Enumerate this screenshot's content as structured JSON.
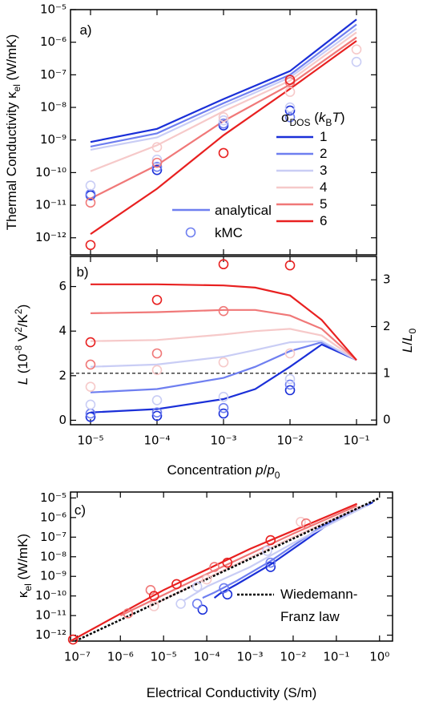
{
  "chart_data": [
    {
      "type": "line",
      "panel_label": "a)",
      "xlog": true,
      "ylog": true,
      "xlim": [
        5e-06,
        0.2
      ],
      "ylim": [
        3e-13,
        1e-05
      ],
      "xticks": [
        1e-05,
        0.0001,
        0.001,
        0.01,
        0.1
      ],
      "xtick_labels": false,
      "yticks": [
        {
          "value": 1e-05,
          "label": "10⁻⁵"
        },
        {
          "value": 1e-06,
          "label": "10⁻⁶"
        },
        {
          "value": 1e-07,
          "label": "10⁻⁷"
        },
        {
          "value": 1e-08,
          "label": "10⁻⁸"
        },
        {
          "value": 1e-09,
          "label": "10⁻⁹"
        },
        {
          "value": 1e-10,
          "label": "10⁻¹⁰"
        },
        {
          "value": 1e-11,
          "label": "10⁻¹¹"
        },
        {
          "value": 1e-12,
          "label": "10⁻¹²"
        }
      ],
      "ylabel": [
        {
          "text": "Thermal Conductivity κ"
        },
        {
          "text": "el",
          "sub": true
        },
        {
          "text": " (W/mK)"
        }
      ],
      "legend": {
        "corner": "lower right",
        "title": [
          {
            "text": "σ"
          },
          {
            "text": "DOS",
            "sub": true
          },
          {
            "text": " ("
          },
          {
            "text": "k",
            "italic": true
          },
          {
            "text": "B",
            "sub": true
          },
          {
            "text": "T",
            "italic": true
          },
          {
            "text": ")"
          }
        ]
      },
      "style_legend": [
        {
          "label": "analytical",
          "kind": "line",
          "color": "#6f7ff0"
        },
        {
          "label": "kMC",
          "kind": "marker",
          "color": "#6f7ff0"
        }
      ],
      "series": [
        {
          "name": "1",
          "color": "#1a2fd8",
          "x": [
            1e-05,
            0.0001,
            0.001,
            0.01,
            0.1
          ],
          "values": [
            8.7e-10,
            2.2e-09,
            1.8e-08,
            1.3e-07,
            5e-06
          ]
        },
        {
          "name": "2",
          "color": "#6f7ff0",
          "x": [
            1e-05,
            0.0001,
            0.001,
            0.01,
            0.1
          ],
          "values": [
            6.3e-10,
            1.6e-09,
            1.35e-08,
            1e-07,
            3.5e-06
          ]
        },
        {
          "name": "3",
          "color": "#c9cdf5",
          "x": [
            1e-05,
            0.0001,
            0.001,
            0.01,
            0.1
          ],
          "values": [
            5e-10,
            1.2e-09,
            1.07e-08,
            8.3e-08,
            2.6e-06
          ]
        },
        {
          "name": "4",
          "color": "#f6c9c9",
          "x": [
            1e-05,
            0.0001,
            0.001,
            0.01,
            0.1
          ],
          "values": [
            1.1e-10,
            6.9e-10,
            7.6e-09,
            6.6e-08,
            2e-06
          ]
        },
        {
          "name": "5",
          "color": "#f07878",
          "x": [
            1e-05,
            0.0001,
            0.001,
            0.01,
            0.1
          ],
          "values": [
            1.6e-11,
            1.7e-10,
            3.8e-09,
            5e-08,
            1.4e-06
          ]
        },
        {
          "name": "6",
          "color": "#e82020",
          "x": [
            1e-05,
            0.0001,
            0.001,
            0.01,
            0.1
          ],
          "values": [
            1.3e-12,
            3.2e-11,
            1.4e-09,
            3.7e-08,
            1.1e-06
          ]
        }
      ],
      "markers": [
        {
          "color": "#1a2fd8",
          "x": [
            1e-05,
            0.0001,
            0.001,
            0.01,
            0.1
          ],
          "values": [
            2e-11,
            1.2e-10,
            2.8e-09,
            8e-09,
            null
          ]
        },
        {
          "color": "#6f7ff0",
          "x": [
            1e-05,
            0.0001,
            0.001,
            0.01,
            0.1
          ],
          "values": [
            2.2e-11,
            1.5e-10,
            3.2e-09,
            5e-09,
            null
          ]
        },
        {
          "color": "#c9cdf5",
          "x": [
            1e-05,
            0.0001,
            0.001,
            0.01,
            0.1
          ],
          "values": [
            4e-11,
            2.5e-10,
            4e-09,
            1e-08,
            2.5e-07
          ]
        },
        {
          "color": "#f6c9c9",
          "x": [
            1e-05,
            0.0001,
            0.001,
            0.01,
            0.1
          ],
          "values": [
            null,
            6e-10,
            5e-09,
            3e-08,
            6e-07
          ]
        },
        {
          "color": "#f07878",
          "x": [
            1e-05,
            0.0001,
            0.001,
            0.01,
            0.1
          ],
          "values": [
            1.2e-11,
            2e-10,
            null,
            6e-08,
            null
          ]
        },
        {
          "color": "#e82020",
          "x": [
            1e-05,
            0.0001,
            0.001,
            0.01,
            0.1
          ],
          "values": [
            6e-13,
            null,
            4e-10,
            7e-08,
            null
          ]
        }
      ]
    },
    {
      "type": "line",
      "panel_label": "b)",
      "xlog": true,
      "ylog": false,
      "xlim": [
        5e-06,
        0.2
      ],
      "ylim": [
        -0.2,
        7.35
      ],
      "y2lim": [
        -0.1,
        3.5
      ],
      "xticks": [
        {
          "value": 1e-05,
          "label": "10⁻⁵"
        },
        {
          "value": 0.0001,
          "label": "10⁻⁴"
        },
        {
          "value": 0.001,
          "label": "10⁻³"
        },
        {
          "value": 0.01,
          "label": "10⁻²"
        },
        {
          "value": 0.1,
          "label": "10⁻¹"
        }
      ],
      "yticks": [
        0,
        2,
        4,
        6
      ],
      "y2ticks": [
        0,
        1,
        2,
        3
      ],
      "xlabel": [
        {
          "text": "Concentration "
        },
        {
          "text": "p",
          "italic": true
        },
        {
          "text": "/"
        },
        {
          "text": "p",
          "italic": true
        },
        {
          "text": "0",
          "sub": true
        }
      ],
      "ylabel": [
        {
          "text": "L",
          "italic": true
        },
        {
          "text": " (10"
        },
        {
          "text": "-8",
          "sup": true
        },
        {
          "text": " V"
        },
        {
          "text": "2",
          "sup": true
        },
        {
          "text": "/K"
        },
        {
          "text": "2",
          "sup": true
        },
        {
          "text": ")"
        }
      ],
      "y2label": [
        {
          "text": "L",
          "italic": true
        },
        {
          "text": "/"
        },
        {
          "text": "L",
          "italic": true
        },
        {
          "text": "0",
          "sub": true
        }
      ],
      "reference_line": {
        "value": 1,
        "axis": "y2"
      },
      "series": [
        {
          "color": "#1a2fd8",
          "x": [
            1e-05,
            0.0001,
            0.001,
            0.003,
            0.01,
            0.03,
            0.1
          ],
          "values": [
            0.35,
            0.5,
            0.95,
            1.4,
            2.4,
            3.4,
            2.7
          ]
        },
        {
          "color": "#6f7ff0",
          "x": [
            1e-05,
            0.0001,
            0.001,
            0.003,
            0.01,
            0.03,
            0.1
          ],
          "values": [
            1.25,
            1.4,
            1.9,
            2.4,
            3.1,
            3.5,
            2.7
          ]
        },
        {
          "color": "#c9cdf5",
          "x": [
            1e-05,
            0.0001,
            0.001,
            0.003,
            0.01,
            0.03,
            0.1
          ],
          "values": [
            2.4,
            2.5,
            2.85,
            3.15,
            3.5,
            3.55,
            2.7
          ]
        },
        {
          "color": "#f6c9c9",
          "x": [
            1e-05,
            0.0001,
            0.001,
            0.003,
            0.01,
            0.03,
            0.1
          ],
          "values": [
            3.55,
            3.6,
            3.85,
            4.0,
            4.1,
            3.8,
            2.7
          ]
        },
        {
          "color": "#f07878",
          "x": [
            1e-05,
            0.0001,
            0.001,
            0.003,
            0.01,
            0.03,
            0.1
          ],
          "values": [
            4.8,
            4.85,
            4.95,
            4.95,
            4.7,
            4.1,
            2.7
          ]
        },
        {
          "color": "#e82020",
          "x": [
            1e-05,
            0.0001,
            0.001,
            0.003,
            0.01,
            0.03,
            0.1
          ],
          "values": [
            6.1,
            6.1,
            6.05,
            5.95,
            5.6,
            4.5,
            2.7
          ]
        }
      ],
      "markers": [
        {
          "color": "#1a2fd8",
          "x": [
            1e-05,
            0.0001,
            0.001,
            0.01
          ],
          "values": [
            0.15,
            0.2,
            0.3,
            1.35
          ]
        },
        {
          "color": "#6f7ff0",
          "x": [
            1e-05,
            0.0001,
            0.001,
            0.01
          ],
          "values": [
            0.3,
            0.35,
            0.55,
            1.6
          ]
        },
        {
          "color": "#c9cdf5",
          "x": [
            1e-05,
            0.0001,
            0.001,
            0.01
          ],
          "values": [
            0.7,
            0.9,
            1.05,
            1.85
          ]
        },
        {
          "color": "#f6c9c9",
          "x": [
            1e-05,
            0.0001,
            0.001,
            0.01
          ],
          "values": [
            1.5,
            2.25,
            2.6,
            3.0
          ]
        },
        {
          "color": "#f07878",
          "x": [
            1e-05,
            0.0001,
            0.001,
            0.01
          ],
          "values": [
            2.5,
            3.0,
            4.9,
            null
          ]
        },
        {
          "color": "#e82020",
          "x": [
            1e-05,
            0.0001,
            0.001,
            0.01
          ],
          "values": [
            3.5,
            5.4,
            7.0,
            6.95
          ]
        }
      ]
    },
    {
      "type": "line",
      "panel_label": "c)",
      "xlog": true,
      "ylog": true,
      "xlim": [
        7e-08,
        2
      ],
      "ylim": [
        5e-13,
        2e-05
      ],
      "xticks": [
        {
          "value": 1e-07,
          "label": "10⁻⁷"
        },
        {
          "value": 1e-06,
          "label": "10⁻⁶"
        },
        {
          "value": 1e-05,
          "label": "10⁻⁵"
        },
        {
          "value": 0.0001,
          "label": "10⁻⁴"
        },
        {
          "value": 0.001,
          "label": "10⁻³"
        },
        {
          "value": 0.01,
          "label": "10⁻²"
        },
        {
          "value": 0.1,
          "label": "10⁻¹"
        },
        {
          "value": 1,
          "label": "10⁰"
        }
      ],
      "yticks": [
        {
          "value": 1e-05,
          "label": "10⁻⁵"
        },
        {
          "value": 1e-06,
          "label": "10⁻⁶"
        },
        {
          "value": 1e-07,
          "label": "10⁻⁷"
        },
        {
          "value": 1e-08,
          "label": "10⁻⁸"
        },
        {
          "value": 1e-09,
          "label": "10⁻⁹"
        },
        {
          "value": 1e-10,
          "label": "10⁻¹⁰"
        },
        {
          "value": 1e-11,
          "label": "10⁻¹¹"
        },
        {
          "value": 1e-12,
          "label": "10⁻¹²"
        }
      ],
      "xlabel": [
        {
          "text": "Electrical Conductivity (S/m)"
        }
      ],
      "ylabel": [
        {
          "text": "κ"
        },
        {
          "text": "el",
          "sub": true
        },
        {
          "text": " (W/mK)"
        }
      ],
      "legend": {
        "corner": "lower right"
      },
      "series": [
        {
          "color": "#1a2fd8",
          "x": [
            0.00015,
            0.0002,
            0.0005,
            0.003,
            0.06,
            0.7
          ],
          "values": [
            8e-11,
            1.3e-10,
            4e-10,
            4e-09,
            4e-07,
            6e-06
          ]
        },
        {
          "color": "#6f7ff0",
          "x": [
            8e-05,
            0.00015,
            0.0005,
            0.003,
            0.05,
            0.6
          ],
          "values": [
            8e-11,
            1.5e-10,
            6e-10,
            6e-09,
            4e-07,
            5e-06
          ]
        },
        {
          "color": "#c9cdf5",
          "x": [
            3e-05,
            0.0001,
            0.001,
            0.01,
            0.5
          ],
          "values": [
            6e-11,
            3e-10,
            3e-09,
            5e-08,
            4e-06
          ]
        },
        {
          "color": "#f6c9c9",
          "x": [
            5e-06,
            0.0001,
            0.01,
            0.4
          ],
          "values": [
            3e-11,
            8e-10,
            1e-07,
            4e-06
          ]
        },
        {
          "color": "#f07878",
          "x": [
            1e-06,
            0.0001,
            0.01,
            0.3
          ],
          "values": [
            1e-11,
            1.3e-09,
            1.5e-07,
            4e-06
          ]
        },
        {
          "color": "#e82020",
          "x": [
            7e-08,
            1e-05,
            0.001,
            0.3
          ],
          "values": [
            5e-13,
            2e-10,
            2.5e-08,
            5e-06
          ]
        },
        {
          "name": [
            "Wiedemann-",
            "Franz law"
          ],
          "color": "#000000",
          "dash": true,
          "x": [
            9e-08,
            1
          ],
          "values": [
            5e-13,
            1e-05
          ]
        }
      ],
      "markers": [
        {
          "color": "#1a2fd8",
          "x": [
            8e-05,
            0.0003,
            0.003
          ],
          "values": [
            2e-11,
            1.2e-10,
            3e-09
          ]
        },
        {
          "color": "#6f7ff0",
          "x": [
            6e-05,
            0.00025,
            0.003
          ],
          "values": [
            4e-11,
            2.5e-10,
            5e-09
          ]
        },
        {
          "color": "#c9cdf5",
          "x": [
            2.5e-05,
            6e-05,
            0.0025
          ],
          "values": [
            4e-11,
            3e-10,
            2e-08
          ]
        },
        {
          "color": "#f6c9c9",
          "x": [
            6e-06,
            0.0001,
            0.015
          ],
          "values": [
            3e-11,
            7e-10,
            6e-07
          ]
        },
        {
          "color": "#f07878",
          "x": [
            1.5e-06,
            5e-06,
            0.00015,
            0.02
          ],
          "values": [
            1.3e-11,
            2e-10,
            3e-09,
            5e-07
          ]
        },
        {
          "color": "#e82020",
          "x": [
            8e-08,
            6e-06,
            2e-05,
            0.0003,
            0.003
          ],
          "values": [
            6e-13,
            1e-10,
            4e-10,
            5e-09,
            7e-08
          ]
        }
      ]
    }
  ]
}
